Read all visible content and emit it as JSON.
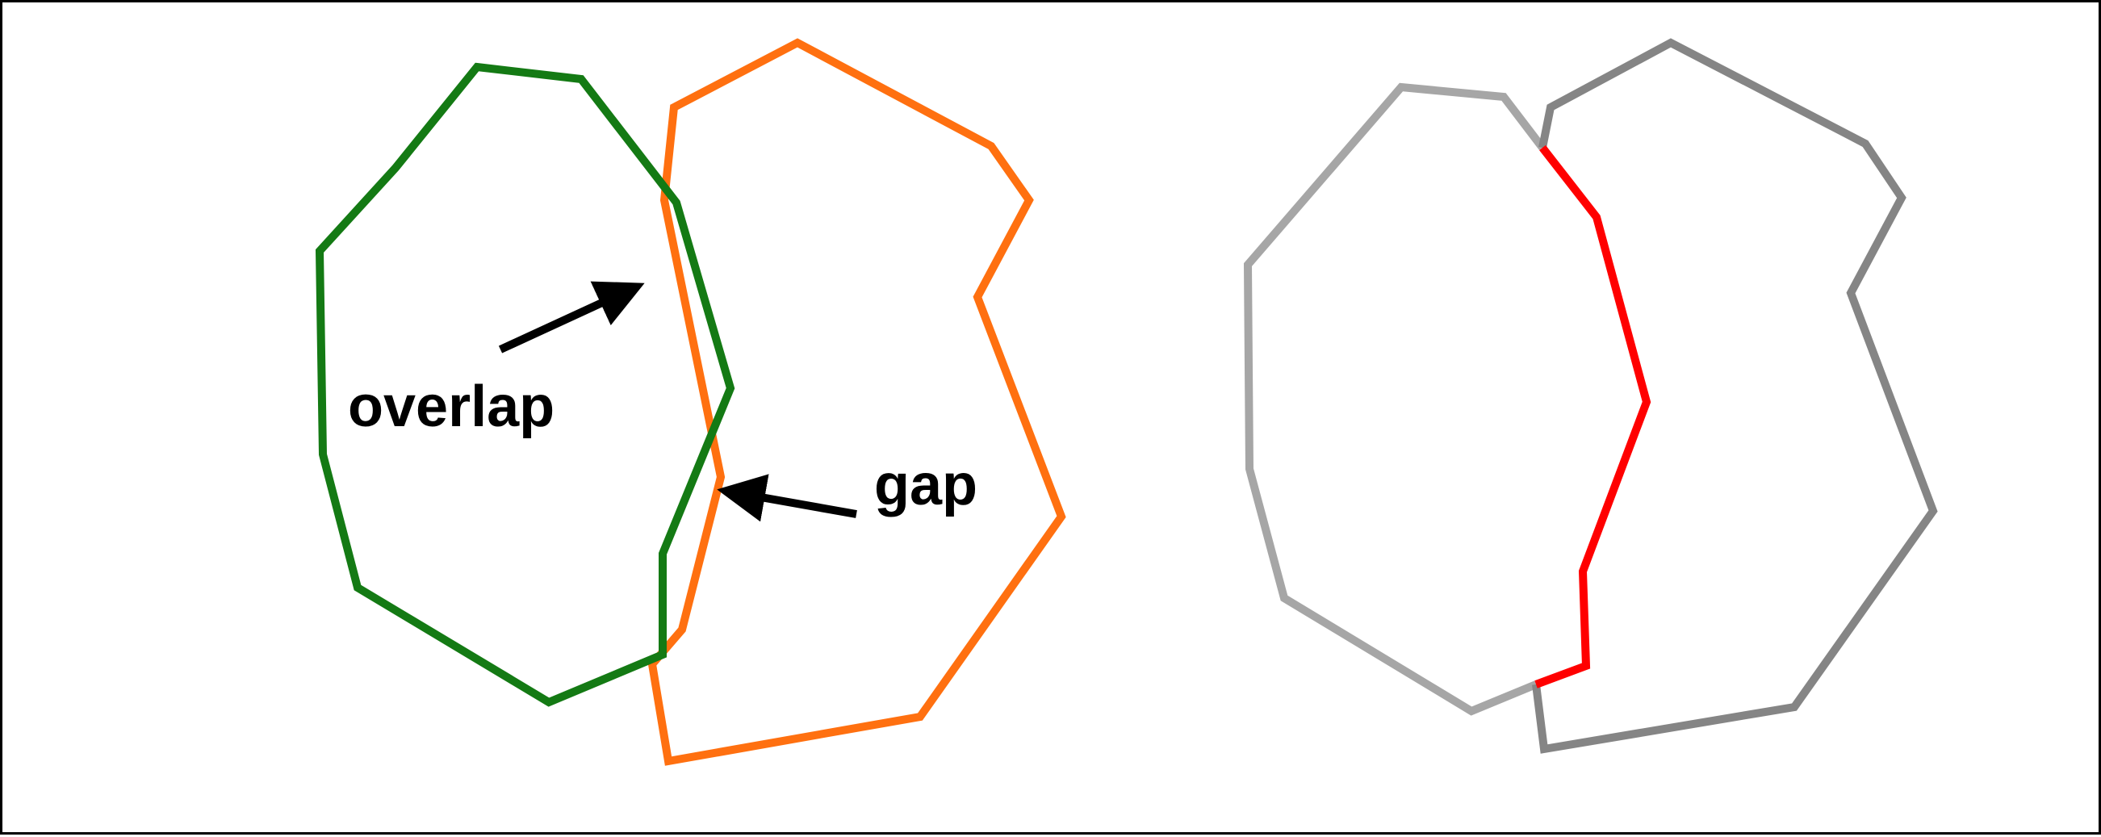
{
  "labels": {
    "overlap": "overlap",
    "gap": "gap"
  },
  "colors": {
    "green_polygon": "#147a14",
    "orange_polygon": "#ff7010",
    "light_gray_polygon": "#a6a6a6",
    "dark_gray_polygon": "#858585",
    "shared_edge": "#ff0000",
    "arrow": "#000000",
    "border": "#000000"
  }
}
